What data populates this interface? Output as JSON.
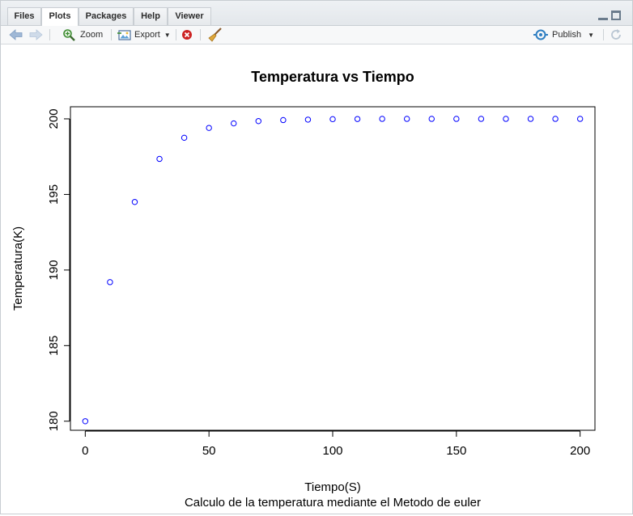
{
  "tabs": [
    {
      "label": "Files"
    },
    {
      "label": "Plots"
    },
    {
      "label": "Packages"
    },
    {
      "label": "Help"
    },
    {
      "label": "Viewer"
    }
  ],
  "toolbar": {
    "zoom_label": "Zoom",
    "export_label": "Export",
    "publish_label": "Publish"
  },
  "colors": {
    "points": "#0000ff",
    "nav_arrow": "#9fb8d6",
    "zoom_icon": "#3a8a2e",
    "close_icon": "#cc2222",
    "publish_icon": "#2f7fc2"
  },
  "chart_data": {
    "type": "scatter",
    "title": "Temperatura vs Tiempo",
    "xlabel": "Tiempo(S)",
    "ylabel": "Temperatura(K)",
    "subtitle": "Calculo de la temperatura mediante el Metodo de euler",
    "xlim": [
      -6,
      206
    ],
    "ylim": [
      179.4,
      200.8
    ],
    "xticks": [
      0,
      50,
      100,
      150,
      200
    ],
    "yticks": [
      180,
      185,
      190,
      195,
      200
    ],
    "xtick_labels": [
      "0",
      "50",
      "100",
      "150",
      "200"
    ],
    "ytick_labels": [
      "180",
      "185",
      "190",
      "195",
      "200"
    ],
    "marker": "open-circle",
    "grid": false,
    "x": [
      0,
      10,
      20,
      30,
      40,
      50,
      60,
      70,
      80,
      90,
      100,
      110,
      120,
      130,
      140,
      150,
      160,
      170,
      180,
      190,
      200
    ],
    "y": [
      180,
      189.2,
      194.5,
      197.35,
      198.75,
      199.4,
      199.7,
      199.85,
      199.92,
      199.95,
      199.98,
      199.99,
      200,
      200,
      200,
      200,
      200,
      200,
      200,
      200,
      200
    ]
  }
}
